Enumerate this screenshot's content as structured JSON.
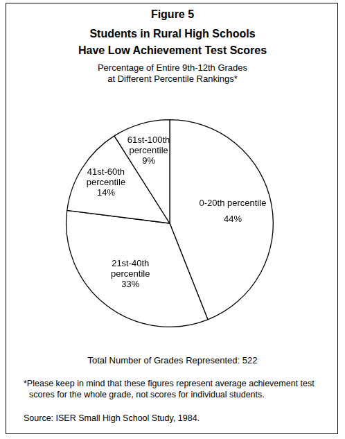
{
  "chart_data": {
    "type": "pie",
    "figure_label": "Figure 5",
    "title": [
      "Students in Rural High Schools",
      "Have Low Achievement Test Scores"
    ],
    "subtitle": [
      "Percentage of Entire 9th-12th Grades",
      "at Different Percentile Rankings*"
    ],
    "categories": [
      "0-20th percentile",
      "21st-40th percentile",
      "41st-60th percentile",
      "61st-100th percentile"
    ],
    "values": [
      44,
      33,
      14,
      9
    ],
    "value_labels": [
      "44%",
      "33%",
      "14%",
      "9%"
    ],
    "data_labels": true,
    "colors": [
      "#ffffff",
      "#ffffff",
      "#ffffff",
      "#ffffff"
    ],
    "annotations": [
      "Total Number of Grades Represented: 522"
    ],
    "footnote": "*Please keep in mind that these figures represent average achievement test scores for the whole grade, not scores for individual students.",
    "source": "Source: ISER Small High School Study, 1984."
  }
}
